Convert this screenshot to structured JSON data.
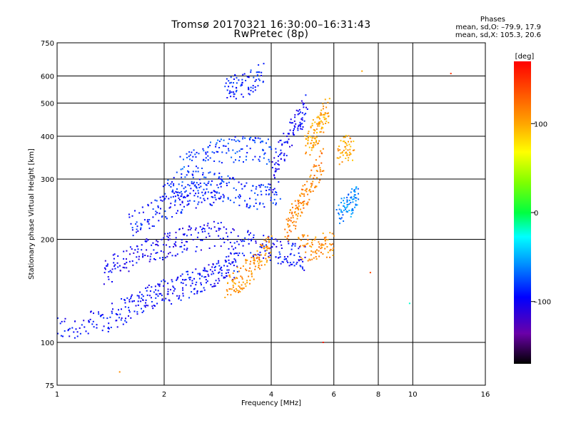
{
  "header": {
    "title_line1": "Tromsø 20170321 16:30:00–16:31:43",
    "title_line2": "RwPretec (8p)",
    "stats_heading": "Phases",
    "stats_o": "mean, sd,O: –79.9, 17.9",
    "stats_x": "mean, sd,X: 105.3, 20.6"
  },
  "colorbar": {
    "label": "[deg]",
    "tick_values": [
      -100,
      0,
      100
    ],
    "tick_labels": [
      "–100",
      "0",
      "100"
    ],
    "range": [
      -170,
      170
    ],
    "colors": [
      "#000000",
      "#6a00a8",
      "#0000ff",
      "#0090ff",
      "#00ffff",
      "#00ff40",
      "#80ff00",
      "#ffff00",
      "#ffa000",
      "#ff5000",
      "#ff0000"
    ]
  },
  "chart_data": {
    "type": "scatter",
    "title": "Tromsø 20170321 16:30:00–16:31:43",
    "subtitle": "RwPretec (8p)",
    "xlabel": "Frequency [MHz]",
    "ylabel": "Stationary phase Virtual Height [km]",
    "xscale": "log",
    "yscale": "log",
    "xlim": [
      1,
      16
    ],
    "ylim": [
      75,
      750
    ],
    "xticks": [
      1,
      2,
      4,
      6,
      8,
      10,
      16
    ],
    "xtick_labels": [
      "1",
      "2",
      "4",
      "6",
      "8",
      "10",
      "16"
    ],
    "yticks": [
      75,
      100,
      200,
      300,
      400,
      500,
      600,
      750
    ],
    "ytick_labels": [
      "75",
      "100",
      "200",
      "300",
      "400",
      "500",
      "600",
      "750"
    ],
    "grid": true,
    "color_scale": "phase [deg]",
    "traces": [
      {
        "name": "",
        "phase": -95,
        "x": [
          1.0,
          1.2,
          1.4,
          1.55,
          1.7,
          1.85,
          2.0,
          2.2,
          2.4,
          2.6,
          2.8,
          3.0,
          3.2
        ],
        "y": [
          110,
          112,
          118,
          125,
          132,
          138,
          140,
          145,
          150,
          155,
          160,
          165,
          170
        ]
      },
      {
        "name": "",
        "phase": -100,
        "x": [
          1.35,
          1.5,
          1.7,
          1.9,
          2.1,
          2.3,
          2.6,
          3.0
        ],
        "y": [
          160,
          170,
          180,
          190,
          195,
          200,
          205,
          210
        ]
      },
      {
        "name": "",
        "phase": -90,
        "x": [
          1.6,
          1.8,
          2.0,
          2.2,
          2.4,
          2.7,
          3.0
        ],
        "y": [
          220,
          235,
          250,
          260,
          270,
          275,
          280
        ]
      },
      {
        "name": "",
        "phase": -85,
        "x": [
          2.0,
          2.3,
          2.6,
          3.0,
          3.4,
          3.8,
          4.2
        ],
        "y": [
          280,
          290,
          290,
          285,
          270,
          265,
          275
        ]
      },
      {
        "name": "",
        "phase": -80,
        "x": [
          2.2,
          2.5,
          2.8,
          3.2,
          3.6,
          4.0
        ],
        "y": [
          320,
          340,
          360,
          370,
          365,
          360
        ]
      },
      {
        "name": "",
        "phase": -95,
        "x": [
          3.0,
          3.4,
          3.8,
          4.2,
          4.6,
          5.0
        ],
        "y": [
          200,
          195,
          190,
          185,
          180,
          178
        ]
      },
      {
        "name": "",
        "phase": -90,
        "x": [
          3.0,
          3.2,
          3.5,
          3.8
        ],
        "y": [
          540,
          560,
          580,
          600
        ]
      },
      {
        "name": "",
        "phase": -100,
        "x": [
          4.0,
          4.2,
          4.5,
          4.8,
          5.0
        ],
        "y": [
          300,
          350,
          400,
          450,
          500
        ]
      },
      {
        "name": "",
        "phase": 110,
        "x": [
          3.0,
          3.2,
          3.4,
          3.6,
          3.8,
          4.0
        ],
        "y": [
          145,
          150,
          160,
          170,
          185,
          200
        ]
      },
      {
        "name": "",
        "phase": 115,
        "x": [
          4.4,
          4.6,
          4.8,
          5.0,
          5.3,
          5.6
        ],
        "y": [
          210,
          230,
          250,
          270,
          300,
          350
        ]
      },
      {
        "name": "",
        "phase": 100,
        "x": [
          5.0,
          5.2,
          5.4,
          5.6,
          5.8
        ],
        "y": [
          380,
          400,
          420,
          450,
          480
        ]
      },
      {
        "name": "",
        "phase": 110,
        "x": [
          4.8,
          5.2,
          5.6,
          6.0
        ],
        "y": [
          190,
          190,
          192,
          195
        ]
      },
      {
        "name": "",
        "phase": -60,
        "x": [
          6.2,
          6.5,
          6.8,
          7.0
        ],
        "y": [
          240,
          250,
          260,
          270
        ]
      },
      {
        "name": "",
        "phase": 100,
        "x": [
          6.2,
          6.5,
          6.8
        ],
        "y": [
          360,
          370,
          365
        ]
      }
    ],
    "isolated_points": [
      {
        "x": 7.2,
        "y": 620,
        "phase": 100
      },
      {
        "x": 7.6,
        "y": 160,
        "phase": 140
      },
      {
        "x": 9.8,
        "y": 130,
        "phase": -20
      },
      {
        "x": 12.8,
        "y": 610,
        "phase": 150
      },
      {
        "x": 5.6,
        "y": 100,
        "phase": 160
      },
      {
        "x": 1.5,
        "y": 82,
        "phase": 110
      }
    ]
  }
}
